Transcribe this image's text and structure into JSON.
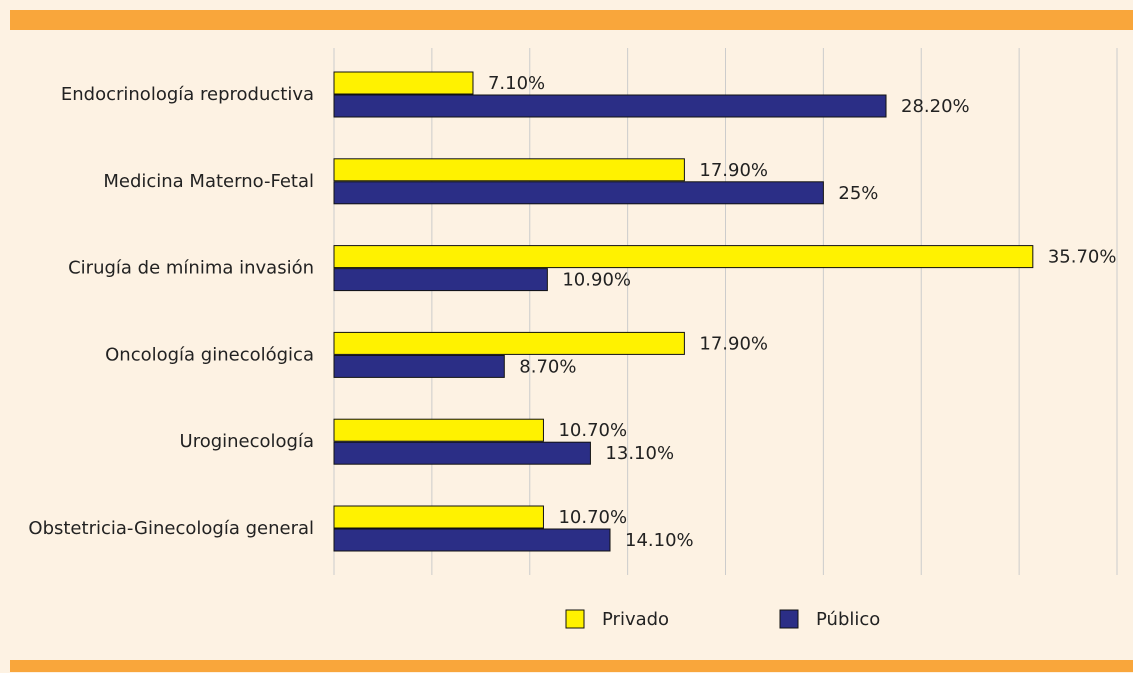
{
  "chart_data": {
    "type": "bar",
    "orientation": "horizontal",
    "categories": [
      "Endocrinología reproductiva",
      "Medicina Materno-Fetal",
      "Cirugía de mínima invasión",
      "Oncología ginecológica",
      "Uroginecología",
      "Obstetricia-Ginecología general"
    ],
    "series": [
      {
        "name": "Privado",
        "color": "#fff200",
        "values": [
          7.1,
          17.9,
          35.7,
          17.9,
          10.7,
          10.7
        ],
        "value_labels": [
          "7.10%",
          "17.90%",
          "35.70%",
          "17.90%",
          "10.70%",
          "10.70%"
        ]
      },
      {
        "name": "Público",
        "color": "#2b2e86",
        "values": [
          28.2,
          25,
          10.9,
          8.7,
          13.1,
          14.1
        ],
        "value_labels": [
          "28.20%",
          "25%",
          "10.90%",
          "8.70%",
          "13.10%",
          "14.10%"
        ]
      }
    ],
    "xlim": [
      0,
      40
    ],
    "xticks": [
      0,
      5,
      10,
      15,
      20,
      25,
      30,
      35,
      40
    ],
    "grid": true,
    "legend": "bottom"
  }
}
